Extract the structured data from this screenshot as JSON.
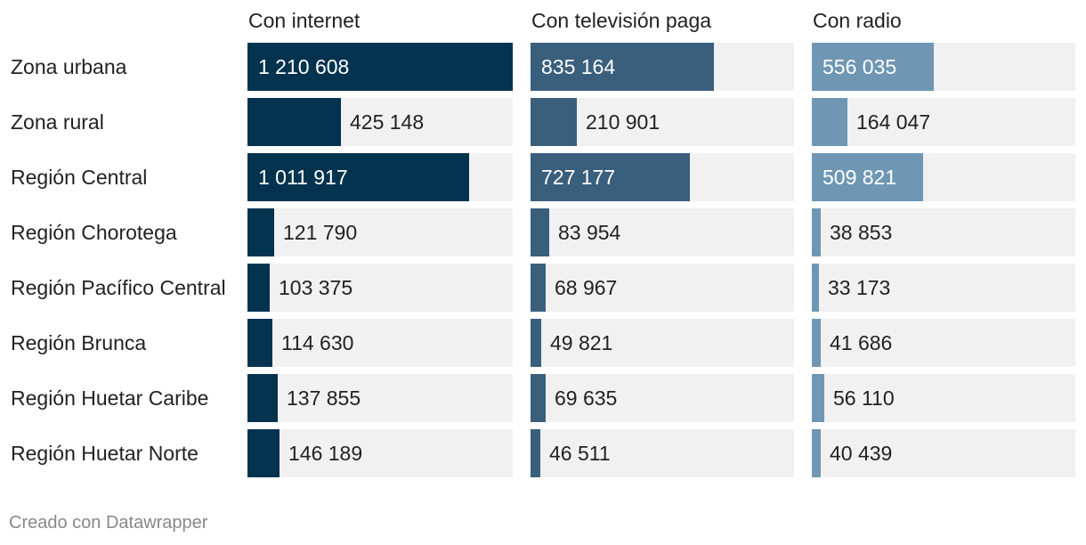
{
  "chart_data": {
    "type": "bar",
    "subtype": "horizontal-small-multiples",
    "categories": [
      "Zona urbana",
      "Zona rural",
      "Región Central",
      "Región Chorotega",
      "Región Pacífico Central",
      "Región Brunca",
      "Región Huetar Caribe",
      "Región Huetar Norte"
    ],
    "series": [
      {
        "name": "Con internet",
        "color": "#04334f",
        "values": [
          1210608,
          425148,
          1011917,
          121790,
          103375,
          114630,
          137855,
          146189
        ],
        "labels": [
          "1 210 608",
          "425 148",
          "1 011 917",
          "121 790",
          "103 375",
          "114 630",
          "137 855",
          "146 189"
        ]
      },
      {
        "name": "Con televisión paga",
        "color": "#3a5f7d",
        "values": [
          835164,
          210901,
          727177,
          83954,
          68967,
          49821,
          69635,
          46511
        ],
        "labels": [
          "835 164",
          "210 901",
          "727 177",
          "83 954",
          "68 967",
          "49 821",
          "69 635",
          "46 511"
        ]
      },
      {
        "name": "Con radio",
        "color": "#6f97b4",
        "values": [
          556035,
          164047,
          509821,
          38853,
          33173,
          41686,
          56110,
          40439
        ],
        "labels": [
          "556 035",
          "164 047",
          "509 821",
          "38 853",
          "33 173",
          "41 686",
          "56 110",
          "40 439"
        ]
      }
    ],
    "xlim": [
      0,
      1210608
    ],
    "grid": false,
    "background_color": "#f1f1f1"
  },
  "footer": {
    "credit": "Creado con Datawrapper"
  }
}
